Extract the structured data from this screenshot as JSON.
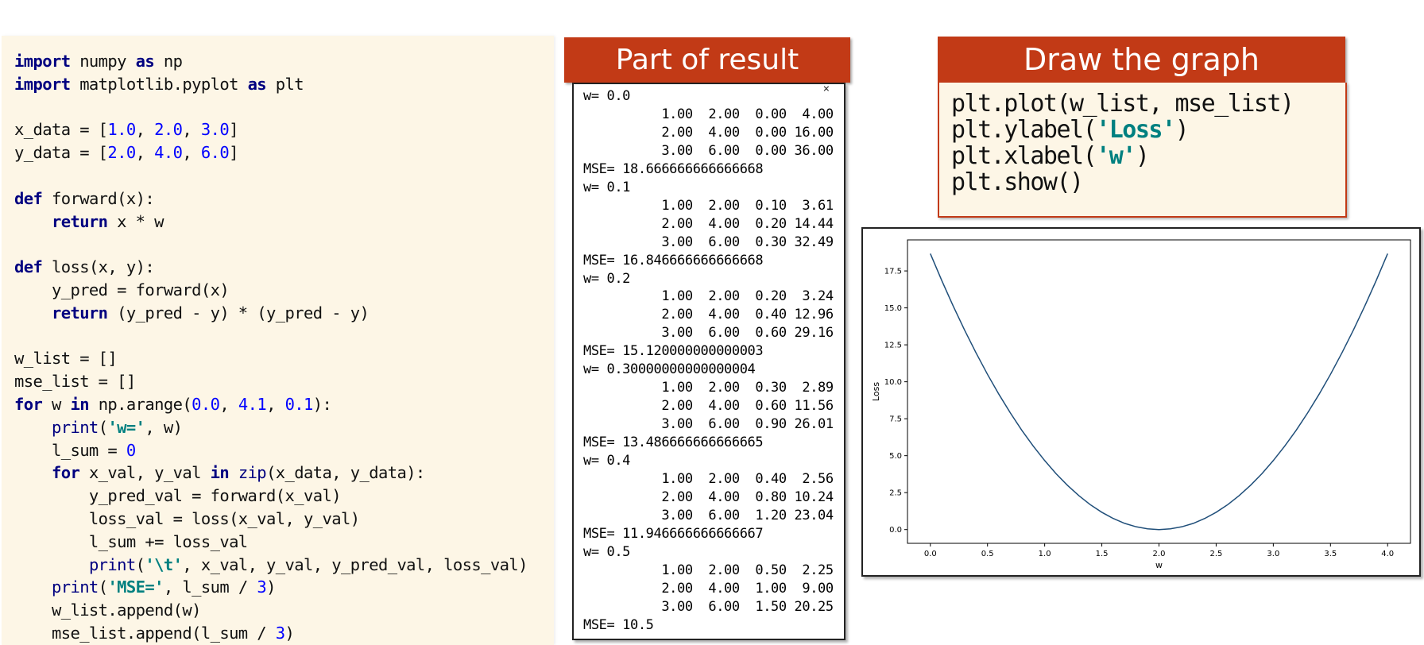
{
  "code": {
    "lines": [
      [
        {
          "t": "import",
          "c": "kw"
        },
        {
          "t": " numpy "
        },
        {
          "t": "as",
          "c": "kw"
        },
        {
          "t": " np"
        }
      ],
      [
        {
          "t": "import",
          "c": "kw"
        },
        {
          "t": " matplotlib.pyplot "
        },
        {
          "t": "as",
          "c": "kw"
        },
        {
          "t": " plt"
        }
      ],
      [],
      [
        {
          "t": "x_data = ["
        },
        {
          "t": "1.0",
          "c": "num"
        },
        {
          "t": ", "
        },
        {
          "t": "2.0",
          "c": "num"
        },
        {
          "t": ", "
        },
        {
          "t": "3.0",
          "c": "num"
        },
        {
          "t": "]"
        }
      ],
      [
        {
          "t": "y_data = ["
        },
        {
          "t": "2.0",
          "c": "num"
        },
        {
          "t": ", "
        },
        {
          "t": "4.0",
          "c": "num"
        },
        {
          "t": ", "
        },
        {
          "t": "6.0",
          "c": "num"
        },
        {
          "t": "]"
        }
      ],
      [],
      [
        {
          "t": "def",
          "c": "kw"
        },
        {
          "t": " forward(x):"
        }
      ],
      [
        {
          "t": "    "
        },
        {
          "t": "return",
          "c": "kw"
        },
        {
          "t": " x * w"
        }
      ],
      [],
      [
        {
          "t": "def",
          "c": "kw"
        },
        {
          "t": " loss(x, y):"
        }
      ],
      [
        {
          "t": "    y_pred = forward(x)"
        }
      ],
      [
        {
          "t": "    "
        },
        {
          "t": "return",
          "c": "kw"
        },
        {
          "t": " (y_pred - y) * (y_pred - y)"
        }
      ],
      [],
      [
        {
          "t": "w_list = []"
        }
      ],
      [
        {
          "t": "mse_list = []"
        }
      ],
      [
        {
          "t": "for",
          "c": "kw"
        },
        {
          "t": " w "
        },
        {
          "t": "in",
          "c": "kw"
        },
        {
          "t": " np.arange("
        },
        {
          "t": "0.0",
          "c": "num"
        },
        {
          "t": ", "
        },
        {
          "t": "4.1",
          "c": "num"
        },
        {
          "t": ", "
        },
        {
          "t": "0.1",
          "c": "num"
        },
        {
          "t": "):"
        }
      ],
      [
        {
          "t": "    "
        },
        {
          "t": "print",
          "c": "fn"
        },
        {
          "t": "("
        },
        {
          "t": "'w='",
          "c": "str"
        },
        {
          "t": ", w)"
        }
      ],
      [
        {
          "t": "    l_sum = "
        },
        {
          "t": "0",
          "c": "num"
        }
      ],
      [
        {
          "t": "    "
        },
        {
          "t": "for",
          "c": "kw"
        },
        {
          "t": " x_val, y_val "
        },
        {
          "t": "in",
          "c": "kw"
        },
        {
          "t": " "
        },
        {
          "t": "zip",
          "c": "fn"
        },
        {
          "t": "(x_data, y_data):"
        }
      ],
      [
        {
          "t": "        y_pred_val = forward(x_val)"
        }
      ],
      [
        {
          "t": "        loss_val = loss(x_val, y_val)"
        }
      ],
      [
        {
          "t": "        l_sum += loss_val"
        }
      ],
      [
        {
          "t": "        "
        },
        {
          "t": "print",
          "c": "fn"
        },
        {
          "t": "("
        },
        {
          "t": "'\\t'",
          "c": "str"
        },
        {
          "t": ", x_val, y_val, y_pred_val, loss_val)"
        }
      ],
      [
        {
          "t": "    "
        },
        {
          "t": "print",
          "c": "fn"
        },
        {
          "t": "("
        },
        {
          "t": "'MSE='",
          "c": "str"
        },
        {
          "t": ", l_sum / "
        },
        {
          "t": "3",
          "c": "num"
        },
        {
          "t": ")"
        }
      ],
      [
        {
          "t": "    w_list.append(w)"
        }
      ],
      [
        {
          "t": "    mse_list.append(l_sum / "
        },
        {
          "t": "3",
          "c": "num"
        },
        {
          "t": ")"
        }
      ]
    ]
  },
  "result": {
    "title": "Part of result",
    "close_mark": "×",
    "lines": [
      "w= 0.0",
      "          1.00  2.00  0.00  4.00",
      "          2.00  4.00  0.00 16.00",
      "          3.00  6.00  0.00 36.00",
      "MSE= 18.666666666666668",
      "w= 0.1",
      "          1.00  2.00  0.10  3.61",
      "          2.00  4.00  0.20 14.44",
      "          3.00  6.00  0.30 32.49",
      "MSE= 16.846666666666668",
      "w= 0.2",
      "          1.00  2.00  0.20  3.24",
      "          2.00  4.00  0.40 12.96",
      "          3.00  6.00  0.60 29.16",
      "MSE= 15.120000000000003",
      "w= 0.30000000000000004",
      "          1.00  2.00  0.30  2.89",
      "          2.00  4.00  0.60 11.56",
      "          3.00  6.00  0.90 26.01",
      "MSE= 13.486666666666665",
      "w= 0.4",
      "          1.00  2.00  0.40  2.56",
      "          2.00  4.00  0.80 10.24",
      "          3.00  6.00  1.20 23.04",
      "MSE= 11.946666666666667",
      "w= 0.5",
      "          1.00  2.00  0.50  2.25",
      "          2.00  4.00  1.00  9.00",
      "          3.00  6.00  1.50 20.25",
      "MSE= 10.5"
    ]
  },
  "graph": {
    "title": "Draw the graph",
    "lines": [
      [
        {
          "t": "plt.plot(w_list, mse_list)"
        }
      ],
      [
        {
          "t": "plt.ylabel("
        },
        {
          "t": "'Loss'",
          "c": "str"
        },
        {
          "t": ")"
        }
      ],
      [
        {
          "t": "plt.xlabel("
        },
        {
          "t": "'w'",
          "c": "str"
        },
        {
          "t": ")"
        }
      ],
      [
        {
          "t": "plt.show()"
        }
      ]
    ]
  },
  "colors": {
    "banner": "#c23a16",
    "panel_bg": "#fdf6e6",
    "line": "#1f4e79"
  },
  "chart_data": {
    "type": "line",
    "xlabel": "w",
    "ylabel": "Loss",
    "xlim": [
      -0.2,
      4.2
    ],
    "ylim": [
      -0.93,
      19.6
    ],
    "xticks": [
      "0.0",
      "0.5",
      "1.0",
      "1.5",
      "2.0",
      "2.5",
      "3.0",
      "3.5",
      "4.0"
    ],
    "yticks": [
      "0.0",
      "2.5",
      "5.0",
      "7.5",
      "10.0",
      "12.5",
      "15.0",
      "17.5"
    ],
    "series": [
      {
        "x": [
          0.0,
          0.1,
          0.2,
          0.3,
          0.4,
          0.5,
          0.6,
          0.7,
          0.8,
          0.9,
          1.0,
          1.1,
          1.2,
          1.3,
          1.4,
          1.5,
          1.6,
          1.7,
          1.8,
          1.9,
          2.0,
          2.1,
          2.2,
          2.3,
          2.4,
          2.5,
          2.6,
          2.7,
          2.8,
          2.9,
          3.0,
          3.1,
          3.2,
          3.3,
          3.4,
          3.5,
          3.6,
          3.7,
          3.8,
          3.9,
          4.0
        ],
        "y": [
          18.67,
          16.85,
          15.12,
          13.49,
          11.95,
          10.5,
          9.15,
          7.89,
          6.72,
          5.65,
          4.67,
          3.78,
          2.99,
          2.29,
          1.68,
          1.17,
          0.75,
          0.42,
          0.19,
          0.05,
          0.0,
          0.05,
          0.19,
          0.42,
          0.75,
          1.17,
          1.68,
          2.29,
          2.99,
          3.78,
          4.67,
          5.65,
          6.72,
          7.89,
          9.15,
          10.5,
          11.95,
          13.49,
          15.12,
          16.85,
          18.67
        ]
      }
    ]
  }
}
